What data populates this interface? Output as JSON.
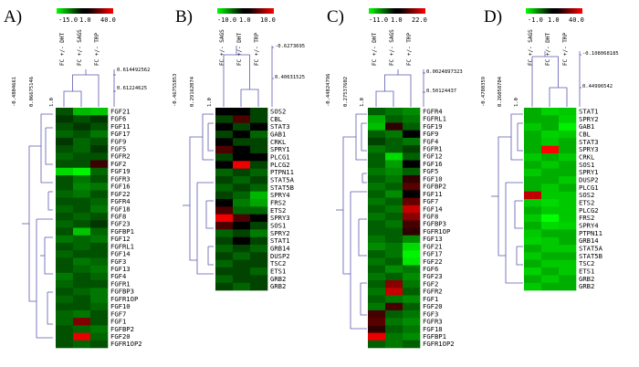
{
  "colors": {
    "neg": "#00ff00",
    "mid": "#000000",
    "pos": "#ff0000",
    "tree": "#5e5ab0"
  },
  "panels": [
    {
      "letter": "A)",
      "scale": [
        "-15.0",
        "1.0",
        "40.0"
      ],
      "scale_min": -15,
      "scale_max": 40,
      "conditions": [
        "FC +/- DHT",
        "FC +/- SAGS",
        "FC +/- TRP"
      ],
      "dist_top": [
        "0.614492562",
        "0.61224625"
      ],
      "dist_side": [
        "-0.4804661",
        "0.06675146",
        "1.0"
      ],
      "rows": [
        "FGF21",
        "FGF6",
        "FGF11",
        "FGF17",
        "FGF9",
        "FGF5",
        "FGFR2",
        "FGF2",
        "FGF19",
        "FGFR3",
        "FGF16",
        "FGF22",
        "FGFR4",
        "FGF18",
        "FGF8",
        "FGF23",
        "FGFBP1",
        "FGF12",
        "FGFRL1",
        "FGF14",
        "FGF3",
        "FGF13",
        "FGF4",
        "FGFR1",
        "FGFBP3",
        "FGFR1OP",
        "FGF10",
        "FGF7",
        "FGF1",
        "FGFBP2",
        "FGF20",
        "FGFR1OP2"
      ],
      "values": [
        [
          -1,
          -8,
          -9
        ],
        [
          0,
          -1,
          0
        ],
        [
          -1,
          0,
          -1
        ],
        [
          -2,
          -1,
          -3
        ],
        [
          0,
          -2,
          -1
        ],
        [
          -1,
          -2,
          0
        ],
        [
          -2,
          -1,
          -1
        ],
        [
          -1,
          -1,
          4
        ],
        [
          -11,
          -14,
          -2
        ],
        [
          -1,
          -3,
          -1
        ],
        [
          -1,
          -4,
          -3
        ],
        [
          -2,
          -3,
          -1
        ],
        [
          -1,
          -1,
          -2
        ],
        [
          -2,
          -1,
          -3
        ],
        [
          -1,
          -2,
          -1
        ],
        [
          -2,
          -1,
          0
        ],
        [
          -1,
          -9,
          -2
        ],
        [
          -3,
          -2,
          -3
        ],
        [
          -1,
          -2,
          -1
        ],
        [
          -2,
          -1,
          -1
        ],
        [
          -1,
          -3,
          -2
        ],
        [
          -1,
          -2,
          -3
        ],
        [
          -3,
          -1,
          -2
        ],
        [
          -2,
          -1,
          -1
        ],
        [
          -1,
          -2,
          -3
        ],
        [
          -2,
          -1,
          -3
        ],
        [
          -1,
          -1,
          -2
        ],
        [
          -2,
          -3,
          -1
        ],
        [
          -2,
          12,
          -1
        ],
        [
          -1,
          -2,
          -3
        ],
        [
          -1,
          34,
          -2
        ],
        [
          -1,
          -2,
          -1
        ]
      ]
    },
    {
      "letter": "B)",
      "scale": [
        "-10.0",
        "1.0",
        "10.0"
      ],
      "scale_min": -10,
      "scale_max": 10,
      "conditions": [
        "FC +/- SAGS",
        "FC +/- DHT",
        "FC +/- TRP"
      ],
      "dist_top": [
        "-0.6273695",
        "0.40631525"
      ],
      "dist_side": [
        "-0.46755853",
        "0.29162074",
        "1.0"
      ],
      "rows": [
        "SOS2",
        "CBL",
        "STAT3",
        "GAB1",
        "CRKL",
        "SPRY1",
        "PLCG1",
        "PLCG2",
        "PTPN11",
        "STAT5A",
        "STAT5B",
        "SPRY4",
        "FRS2",
        "ETS2",
        "SPRY3",
        "SOS1",
        "SPRY2",
        "STAT1",
        "GRB14",
        "DUSP2",
        "TSC2",
        "ETS1",
        "GRB2",
        "GRB2"
      ],
      "values": [
        [
          1,
          1,
          0
        ],
        [
          0,
          2,
          0
        ],
        [
          1,
          0,
          1
        ],
        [
          0,
          1,
          -1
        ],
        [
          1,
          0,
          0
        ],
        [
          2,
          1,
          0
        ],
        [
          0,
          1,
          1
        ],
        [
          1,
          9,
          0
        ],
        [
          -1,
          0,
          -1
        ],
        [
          0,
          -1,
          0
        ],
        [
          -1,
          0,
          -1
        ],
        [
          0,
          -1,
          -5
        ],
        [
          1,
          -2,
          -4
        ],
        [
          2,
          -1,
          -1
        ],
        [
          9,
          2,
          1
        ],
        [
          2,
          1,
          0
        ],
        [
          -1,
          0,
          -2
        ],
        [
          0,
          1,
          0
        ],
        [
          -1,
          0,
          -1
        ],
        [
          0,
          -1,
          0
        ],
        [
          -1,
          0,
          0
        ],
        [
          0,
          0,
          -1
        ],
        [
          -1,
          0,
          0
        ],
        [
          0,
          -1,
          0
        ]
      ]
    },
    {
      "letter": "C)",
      "scale": [
        "-11.0",
        "1.0",
        "22.0"
      ],
      "scale_min": -11,
      "scale_max": 22,
      "conditions": [
        "FC +/- DHT",
        "FC +/- SAGS",
        "FC +/- TRP"
      ],
      "dist_top": [
        "0.0024897323",
        "0.50124437"
      ],
      "dist_side": [
        "-0.44824796",
        "0.27537602",
        "1.0"
      ],
      "rows": [
        "FGFR4",
        "FGFRL1",
        "FGF19",
        "FGF9",
        "FGF4",
        "FGFR1",
        "FGF12",
        "FGF16",
        "FGF5",
        "FGF10",
        "FGFBP2",
        "FGF11",
        "FGF7",
        "FGF14",
        "FGF8",
        "FGFBP3",
        "FGFR1OP",
        "FGF13",
        "FGF21",
        "FGF17",
        "FGF22",
        "FGF6",
        "FGF23",
        "FGF2",
        "FGFR2",
        "FGF1",
        "FGF20",
        "FGF3",
        "FGFR3",
        "FGF18",
        "FGFBP1",
        "FGFR1OP2"
      ],
      "values": [
        [
          -1,
          -2,
          -3
        ],
        [
          -5,
          -1,
          -2
        ],
        [
          -6,
          2,
          -1
        ],
        [
          -1,
          -2,
          1
        ],
        [
          0,
          -1,
          -2
        ],
        [
          -2,
          -1,
          0
        ],
        [
          -1,
          -8,
          -1
        ],
        [
          -1,
          -4,
          1
        ],
        [
          -2,
          -3,
          -1
        ],
        [
          -1,
          -2,
          2
        ],
        [
          -2,
          -1,
          4
        ],
        [
          -1,
          -3,
          1
        ],
        [
          -2,
          -1,
          5
        ],
        [
          -1,
          -2,
          14
        ],
        [
          -2,
          -1,
          8
        ],
        [
          -1,
          -2,
          3
        ],
        [
          -1,
          -1,
          2
        ],
        [
          -2,
          -1,
          -3
        ],
        [
          -3,
          -2,
          -8
        ],
        [
          -1,
          -2,
          -10
        ],
        [
          -2,
          -1,
          -9
        ],
        [
          -1,
          -3,
          -2
        ],
        [
          -2,
          -1,
          -3
        ],
        [
          -1,
          8,
          -2
        ],
        [
          -2,
          14,
          -1
        ],
        [
          -1,
          -2,
          -3
        ],
        [
          -2,
          3,
          -1
        ],
        [
          3,
          -1,
          -2
        ],
        [
          4,
          -2,
          -3
        ],
        [
          2,
          -1,
          -2
        ],
        [
          19,
          -2,
          -3
        ],
        [
          -1,
          -2,
          -1
        ]
      ]
    },
    {
      "letter": "D)",
      "scale": [
        "-1.0",
        "1.0",
        "40.0"
      ],
      "scale_min": -1,
      "scale_max": 40,
      "conditions": [
        "FC +/- SAGS",
        "FC +/- DHT",
        "FC +/- TRP"
      ],
      "dist_top": [
        "-0.108068185",
        "0.44996542"
      ],
      "dist_side": [
        "-0.4780359",
        "0.26058704",
        "1.0"
      ],
      "rows": [
        "STAT1",
        "SPRY2",
        "GAB1",
        "CBL",
        "STAT3",
        "SPRY3",
        "CRKL",
        "SOS1",
        "SPRY1",
        "DUSP2",
        "PLCG1",
        "SOS2",
        "ETS2",
        "PLCG2",
        "FRS2",
        "SPRY4",
        "PTPN11",
        "GRB14",
        "STAT5A",
        "STAT5B",
        "TSC2",
        "ETS1",
        "GRB2",
        "GRB2"
      ],
      "values": [
        [
          0,
          -0.4,
          -0.3
        ],
        [
          0,
          0,
          -0.4
        ],
        [
          -0.3,
          0,
          -0.8
        ],
        [
          0,
          -0.4,
          -0.3
        ],
        [
          0,
          -0.3,
          0
        ],
        [
          0,
          40,
          0
        ],
        [
          -0.3,
          0,
          -0.3
        ],
        [
          0,
          -0.3,
          0
        ],
        [
          -0.3,
          0,
          0
        ],
        [
          0,
          0,
          -0.3
        ],
        [
          0,
          -0.3,
          0
        ],
        [
          25,
          -0.3,
          -0.3
        ],
        [
          -0.3,
          -0.5,
          -0.3
        ],
        [
          0,
          -0.3,
          -0.3
        ],
        [
          -0.3,
          -1,
          -0.3
        ],
        [
          0,
          -0.5,
          -0.4
        ],
        [
          -0.3,
          0,
          0
        ],
        [
          -0.4,
          -0.3,
          0
        ],
        [
          0,
          -0.3,
          -0.3
        ],
        [
          -0.3,
          0,
          0
        ],
        [
          0,
          -0.3,
          -0.3
        ],
        [
          -0.4,
          0,
          -0.3
        ],
        [
          0,
          -0.3,
          0
        ],
        [
          -0.3,
          0,
          0
        ]
      ]
    }
  ]
}
